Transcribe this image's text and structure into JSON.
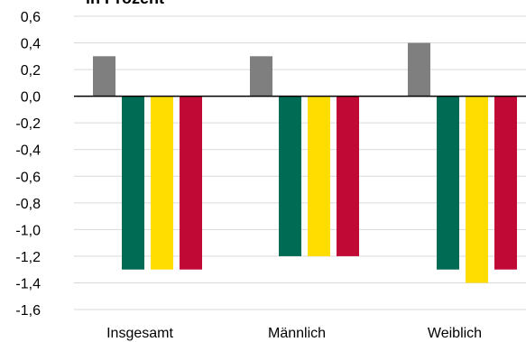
{
  "chart_data": {
    "type": "bar",
    "title": "in Prozent",
    "categories": [
      "Insgesamt",
      "Männlich",
      "Weiblich"
    ],
    "series": [
      {
        "color": "#7f7f7f",
        "values": [
          0.3,
          0.3,
          0.4
        ]
      },
      {
        "color": "#006b54",
        "values": [
          -1.3,
          -1.2,
          -1.3
        ]
      },
      {
        "color": "#ffdd00",
        "values": [
          -1.3,
          -1.2,
          -1.4
        ]
      },
      {
        "color": "#c00a35",
        "values": [
          -1.3,
          -1.2,
          -1.3
        ]
      }
    ],
    "ylim": [
      -1.6,
      0.6
    ],
    "yticks": [
      "0,6",
      "0,4",
      "0,2",
      "0,0",
      "-0,2",
      "-0,4",
      "-0,6",
      "-0,8",
      "-1,0",
      "-1,2",
      "-1,4",
      "-1,6"
    ],
    "grid": true,
    "legend": "none"
  }
}
